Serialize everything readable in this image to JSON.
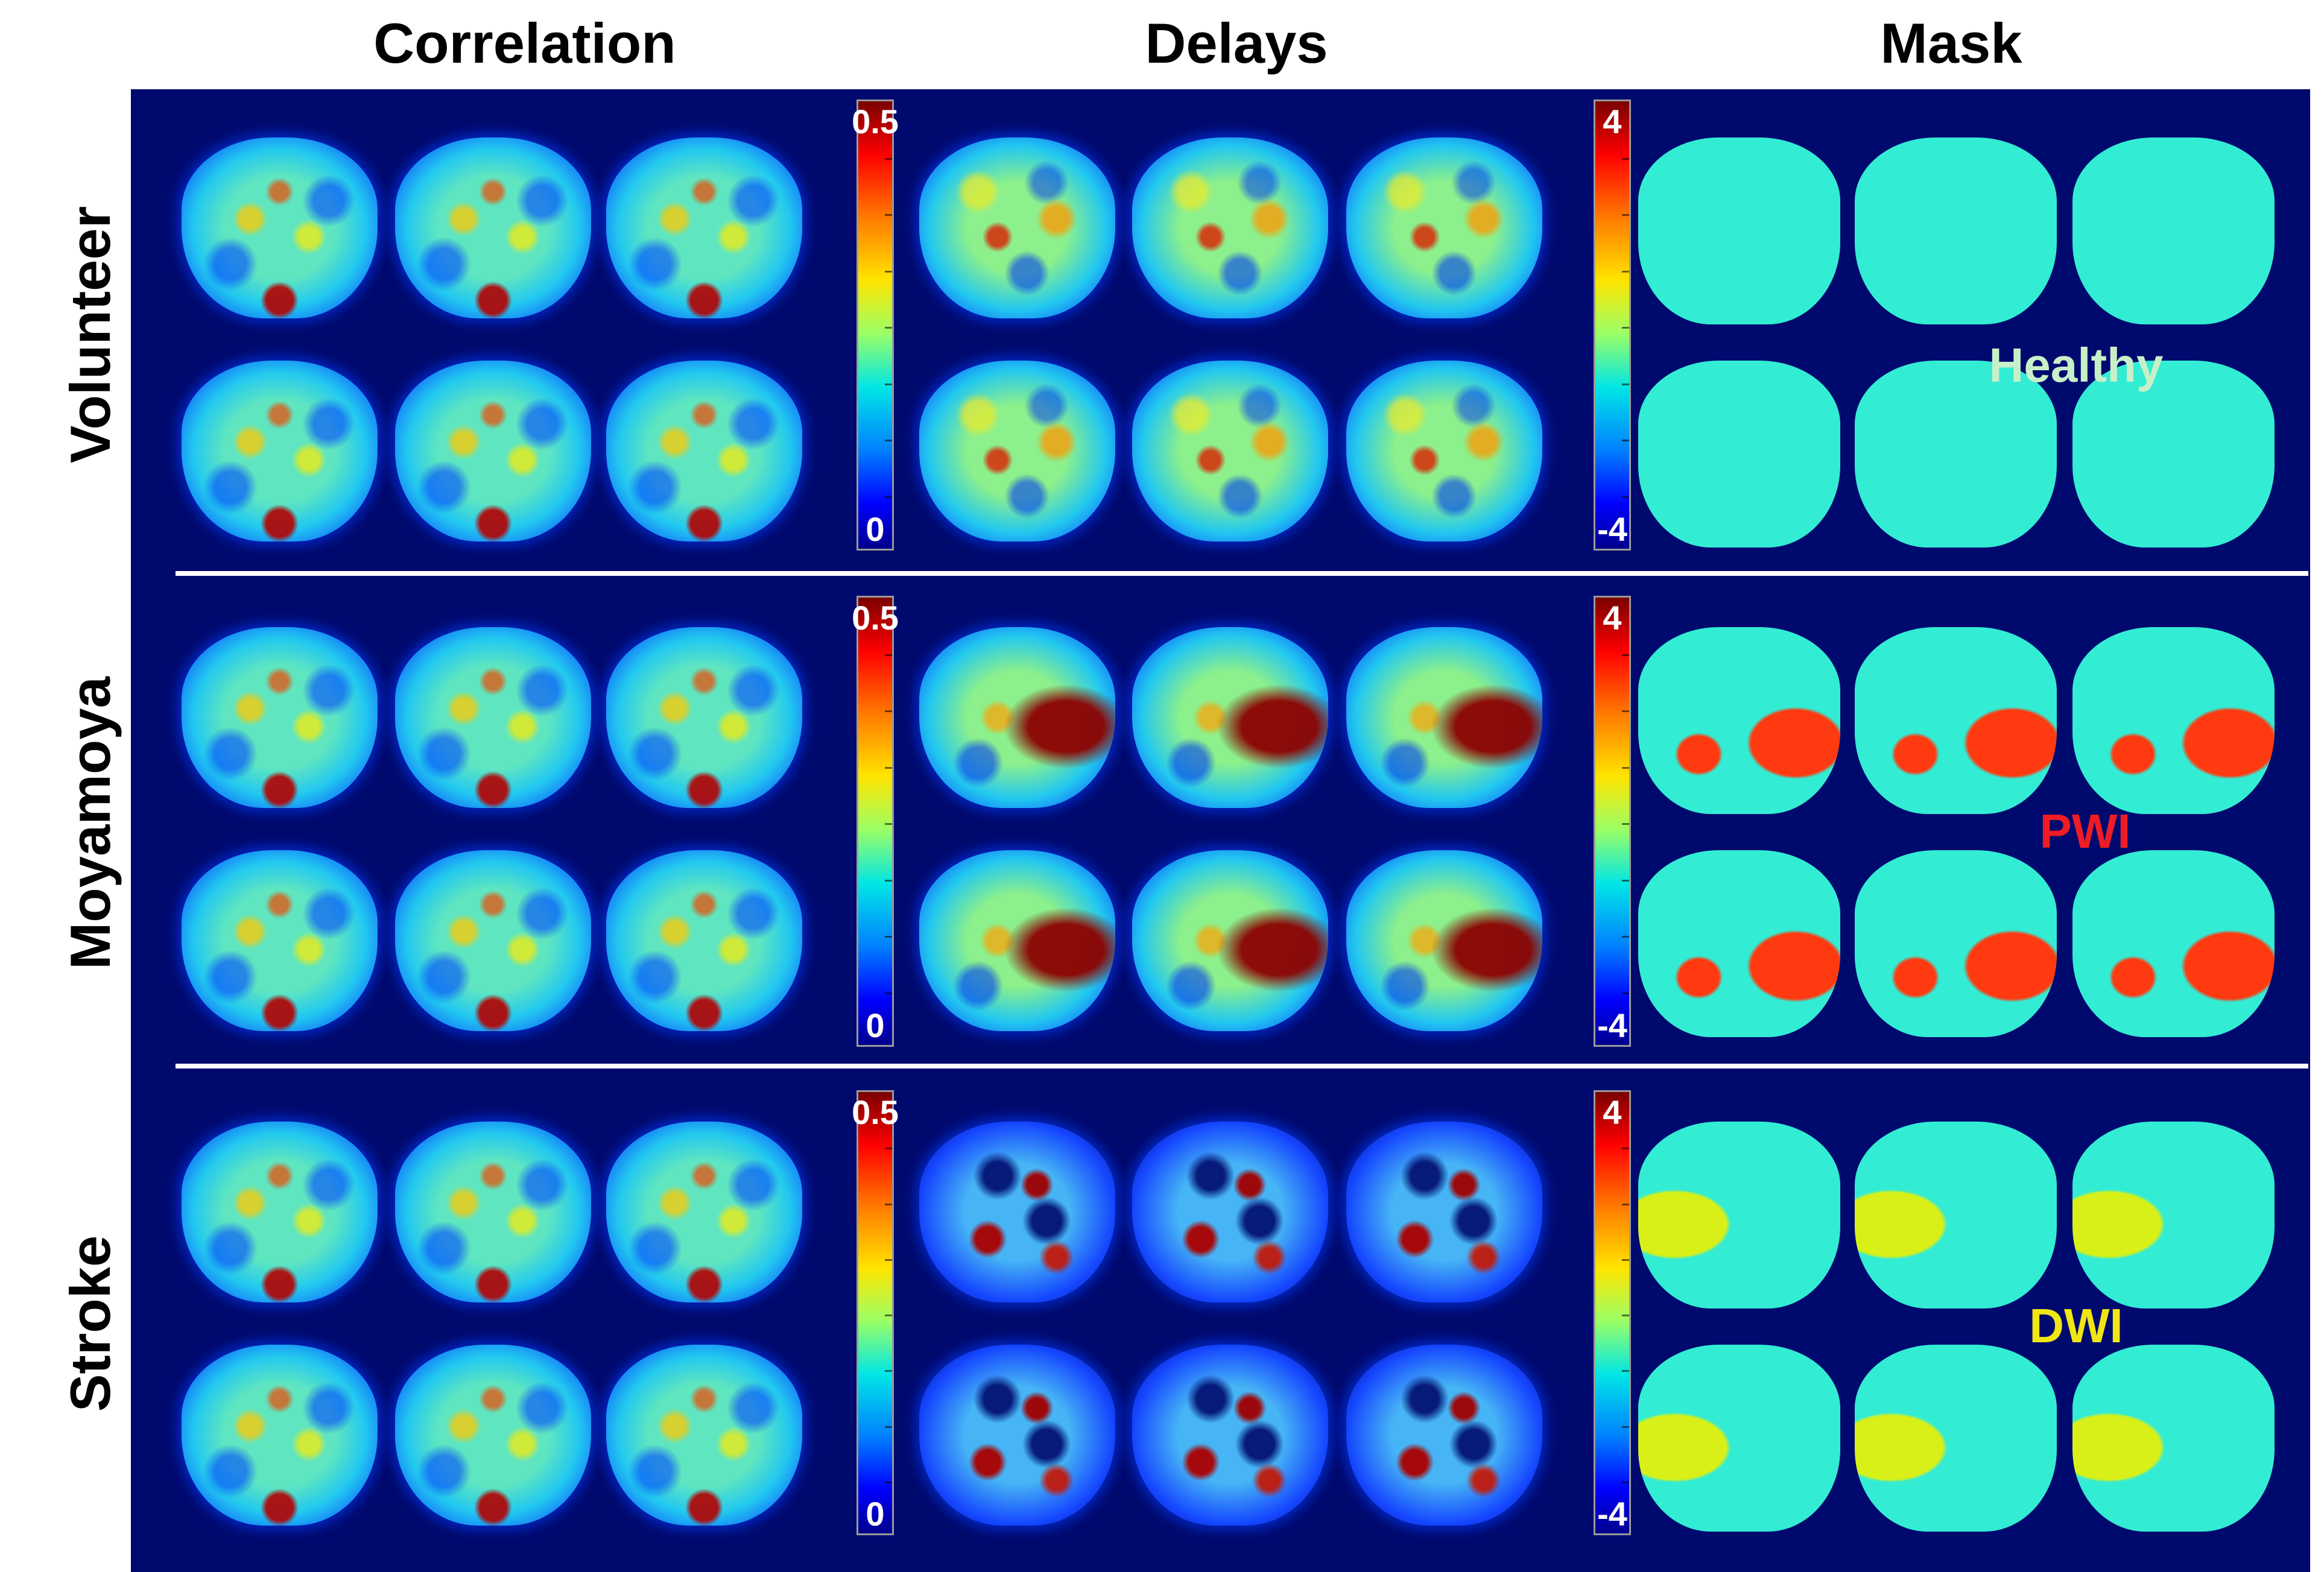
{
  "columns": [
    "Correlation",
    "Delays",
    "Mask"
  ],
  "rows": [
    "Volunteer",
    "Moyamoya",
    "Stroke"
  ],
  "colorbars": {
    "correlation": {
      "max": "0.5",
      "min": "0"
    },
    "delays": {
      "max": "4",
      "min": "-4"
    }
  },
  "annotations": {
    "healthy": "Healthy",
    "pwi": "PWI",
    "dwi": "DWI"
  },
  "colors": {
    "background": "#000a6e",
    "mask_normal": "#33ecd4",
    "mask_pwi": "#ff3a10",
    "mask_dwi": "#d8f018",
    "healthy_text": "#c8f0c8",
    "pwi_text": "#ee1c24",
    "dwi_text": "#f0e614"
  }
}
